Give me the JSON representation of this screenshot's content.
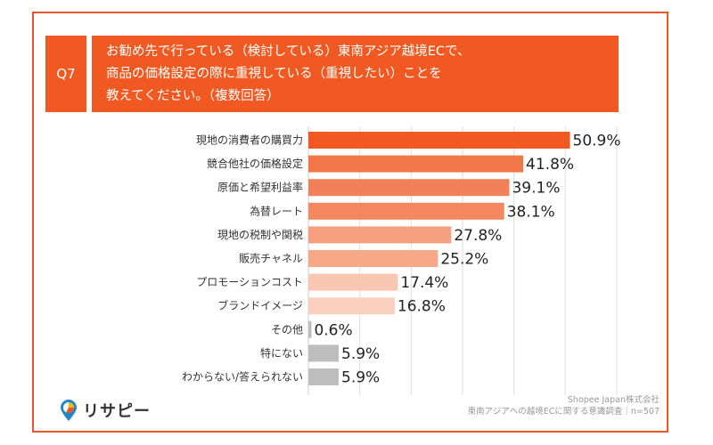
{
  "header": {
    "badge": "Q7",
    "title_lines": [
      "お勧め先で行っている（検討している）東南アジア越境ECで、",
      "商品の価格設定の際に重視している（重視したい）ことを",
      "教えてください。（複数回答）"
    ]
  },
  "chart_data": {
    "type": "bar",
    "orientation": "horizontal",
    "categories": [
      "現地の消費者の購買力",
      "競合他社の価格設定",
      "原価と希望利益率",
      "為替レート",
      "現地の税制や関税",
      "販売チャネル",
      "プロモーションコスト",
      "ブランドイメージ",
      "その他",
      "特にない",
      "わからない/答えられない"
    ],
    "values": [
      50.9,
      41.8,
      39.1,
      38.1,
      27.8,
      25.2,
      17.4,
      16.8,
      0.6,
      5.9,
      5.9
    ],
    "value_labels": [
      "50.9%",
      "41.8%",
      "39.1%",
      "38.1%",
      "27.8%",
      "25.2%",
      "17.4%",
      "16.8%",
      "0.6%",
      "5.9%",
      "5.9%"
    ],
    "bar_colors": [
      "#F05A22",
      "#F27749",
      "#F28058",
      "#F3875F",
      "#F5A07F",
      "#F6A889",
      "#F9C6B1",
      "#FAD0BF",
      "#BDBDBD",
      "#BDBDBD",
      "#BDBDBD"
    ],
    "xlim": [
      0,
      60
    ],
    "grid": true
  },
  "source": {
    "line1": "Shopee Japan株式会社",
    "line2": "東南アジアへの越境ECに関する意識調査｜n=507"
  },
  "brand": {
    "name": "リサピー",
    "icon": "pin-chart-icon"
  },
  "colors": {
    "accent": "#F05A22",
    "frame": "#E8562A"
  }
}
